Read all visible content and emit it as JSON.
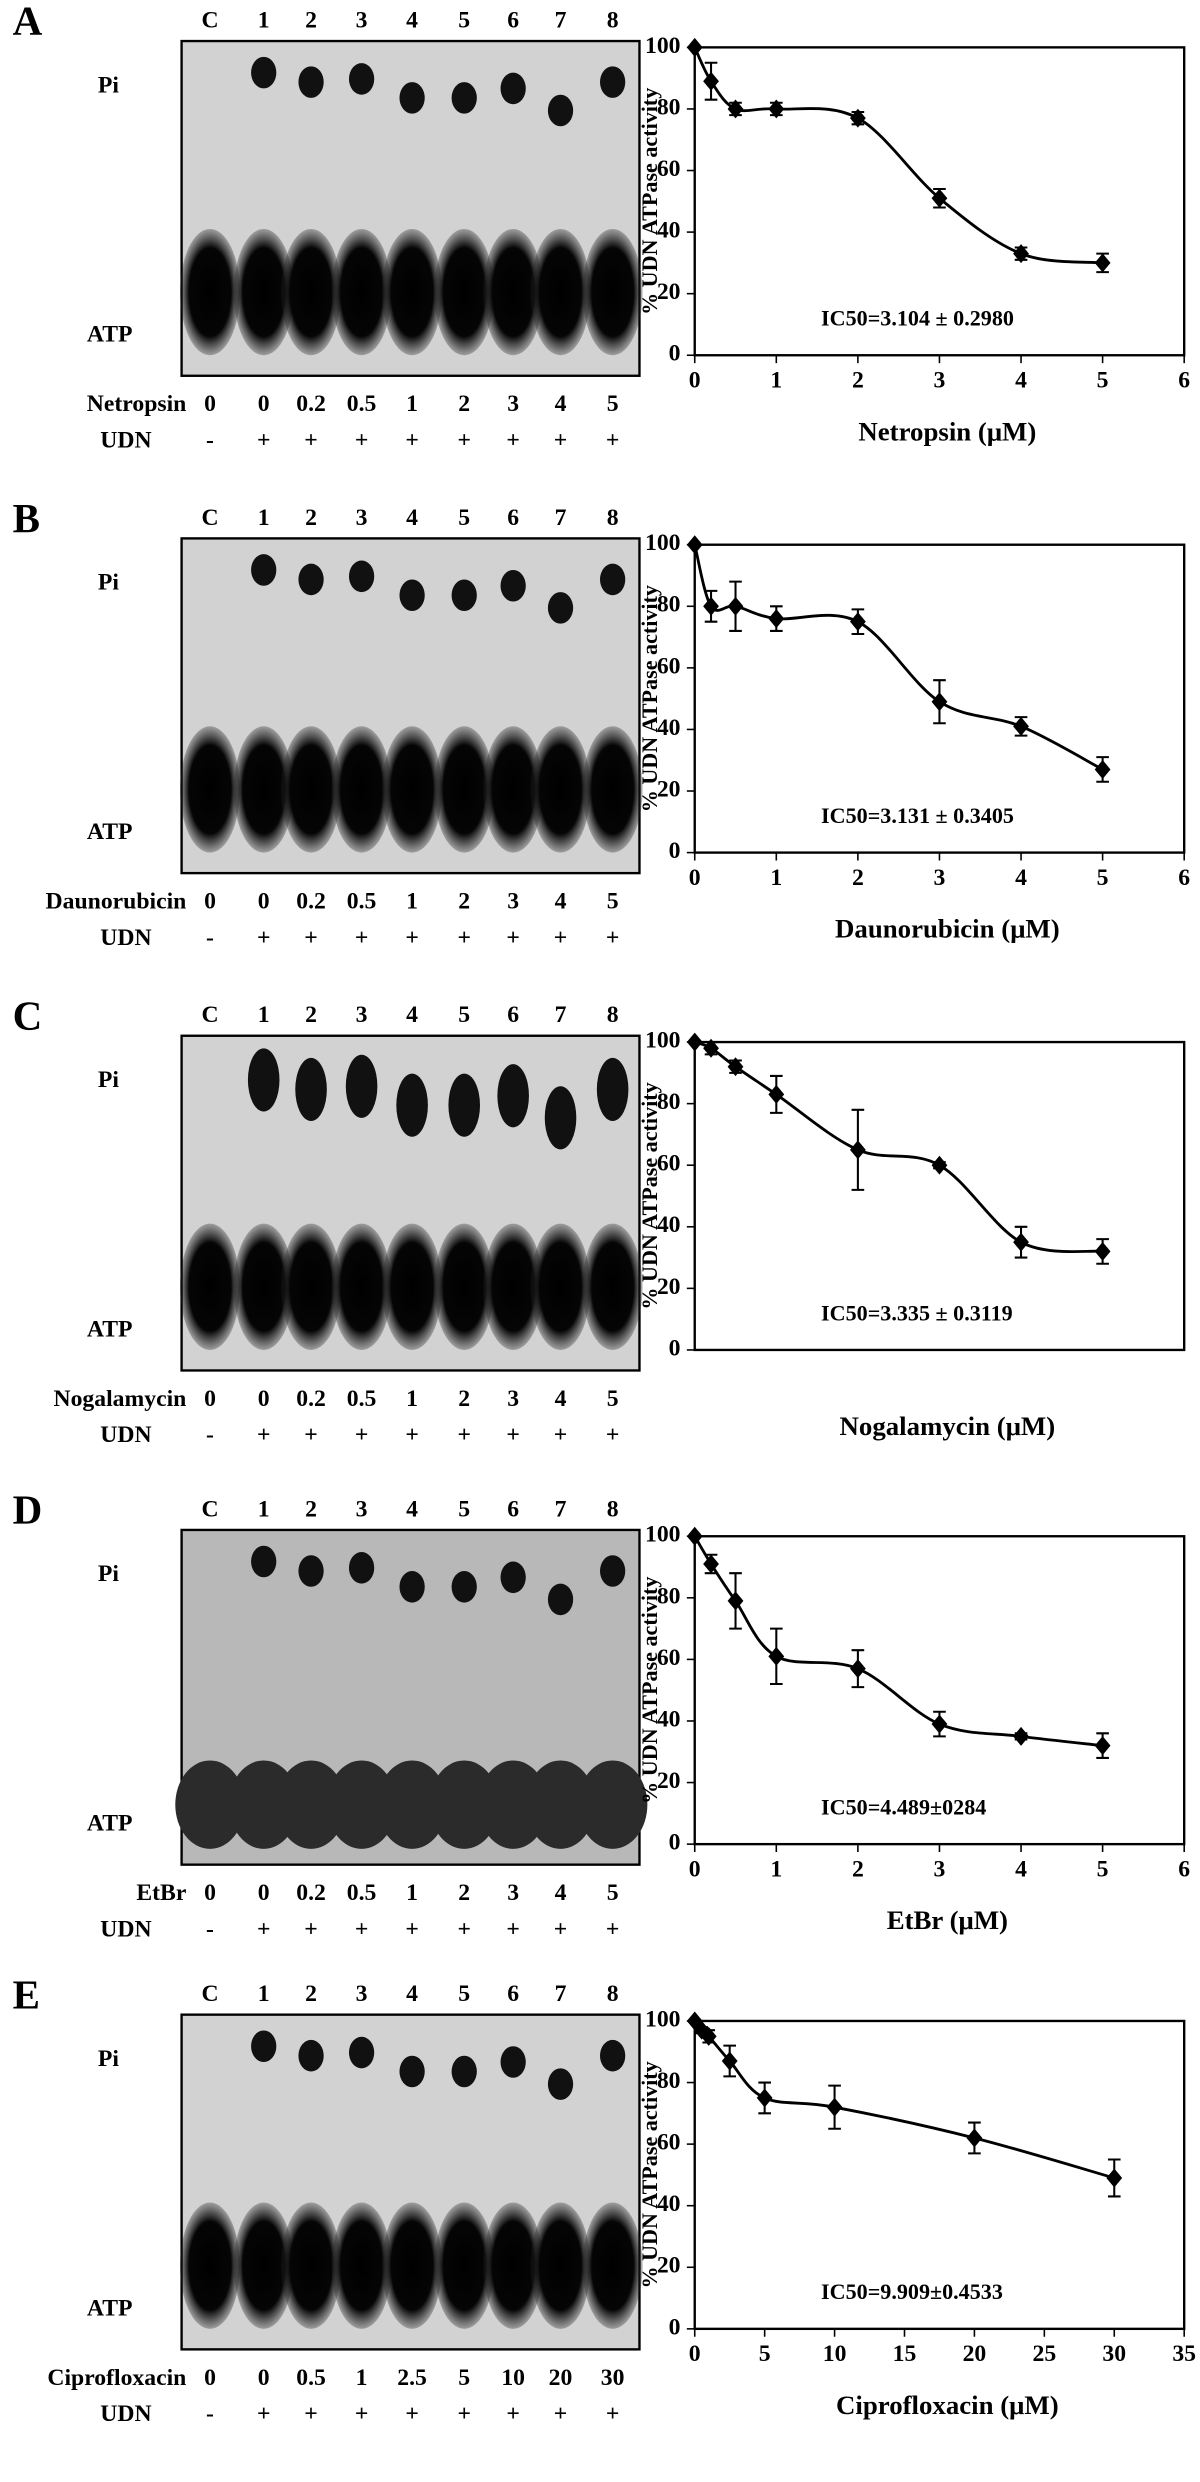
{
  "figure": [
    {
      "label": "A",
      "lanes": [
        "C",
        "1",
        "2",
        "3",
        "4",
        "5",
        "6",
        "7",
        "8"
      ],
      "pi_label": "Pi",
      "atp_label": "ATP",
      "drug": "Netropsin",
      "concentrations": [
        "0",
        "0",
        "0.2",
        "0.5",
        "1",
        "2",
        "3",
        "4",
        "5"
      ],
      "udn_label": "UDN",
      "udn": [
        "-",
        "+",
        "+",
        "+",
        "+",
        "+",
        "+",
        "+",
        "+"
      ]
    },
    {
      "label": "B",
      "lanes": [
        "C",
        "1",
        "2",
        "3",
        "4",
        "5",
        "6",
        "7",
        "8"
      ],
      "pi_label": "Pi",
      "atp_label": "ATP",
      "drug": "Daunorubicin",
      "concentrations": [
        "0",
        "0",
        "0.2",
        "0.5",
        "1",
        "2",
        "3",
        "4",
        "5"
      ],
      "udn_label": "UDN",
      "udn": [
        "-",
        "+",
        "+",
        "+",
        "+",
        "+",
        "+",
        "+",
        "+"
      ]
    },
    {
      "label": "C",
      "lanes": [
        "C",
        "1",
        "2",
        "3",
        "4",
        "5",
        "6",
        "7",
        "8"
      ],
      "pi_label": "Pi",
      "atp_label": "ATP",
      "drug": "Nogalamycin",
      "concentrations": [
        "0",
        "0",
        "0.2",
        "0.5",
        "1",
        "2",
        "3",
        "4",
        "5"
      ],
      "udn_label": "UDN",
      "udn": [
        "-",
        "+",
        "+",
        "+",
        "+",
        "+",
        "+",
        "+",
        "+"
      ]
    },
    {
      "label": "D",
      "lanes": [
        "C",
        "1",
        "2",
        "3",
        "4",
        "5",
        "6",
        "7",
        "8"
      ],
      "pi_label": "Pi",
      "atp_label": "ATP",
      "drug": "EtBr",
      "concentrations": [
        "0",
        "0",
        "0.2",
        "0.5",
        "1",
        "2",
        "3",
        "4",
        "5"
      ],
      "udn_label": "UDN",
      "udn": [
        "-",
        "+",
        "+",
        "+",
        "+",
        "+",
        "+",
        "+",
        "+"
      ]
    },
    {
      "label": "E",
      "lanes": [
        "C",
        "1",
        "2",
        "3",
        "4",
        "5",
        "6",
        "7",
        "8"
      ],
      "pi_label": "Pi",
      "atp_label": "ATP",
      "drug": "Ciprofloxacin",
      "concentrations": [
        "0",
        "0",
        "0.5",
        "1",
        "2.5",
        "5",
        "10",
        "20",
        "30"
      ],
      "udn_label": "UDN",
      "udn": [
        "-",
        "+",
        "+",
        "+",
        "+",
        "+",
        "+",
        "+",
        "+"
      ]
    }
  ],
  "chart_data": [
    {
      "type": "line",
      "ylabel": "% UDN ATPase activity",
      "xlabel": "Netropsin (μM)",
      "annotation": "IC50=3.104 ± 0.2980",
      "x": [
        0,
        0.2,
        0.5,
        1,
        2,
        3,
        4,
        5
      ],
      "series": [
        {
          "color": "#000000",
          "values": [
            100,
            89,
            80,
            80,
            77,
            51,
            33,
            30
          ],
          "errors": [
            0,
            6,
            2,
            2,
            2,
            3,
            2,
            3
          ]
        }
      ],
      "xlim": [
        0,
        6
      ],
      "xticks": [
        0,
        1,
        2,
        3,
        4,
        5,
        6
      ],
      "ylim": [
        0,
        100
      ],
      "yticks": [
        0,
        20,
        40,
        60,
        80,
        100
      ]
    },
    {
      "type": "line",
      "ylabel": "% UDN ATPase activity",
      "xlabel": "Daunorubicin (μM)",
      "annotation": "IC50=3.131 ± 0.3405",
      "x": [
        0,
        0.2,
        0.5,
        1,
        2,
        3,
        4,
        5
      ],
      "series": [
        {
          "color": "#000000",
          "values": [
            100,
            80,
            80,
            76,
            75,
            49,
            41,
            27
          ],
          "errors": [
            0,
            5,
            8,
            4,
            4,
            7,
            3,
            4
          ]
        }
      ],
      "xlim": [
        0,
        6
      ],
      "xticks": [
        0,
        1,
        2,
        3,
        4,
        5,
        6
      ],
      "ylim": [
        0,
        100
      ],
      "yticks": [
        0,
        20,
        40,
        60,
        80,
        100
      ]
    },
    {
      "type": "line",
      "ylabel": "% UDN ATPase activity",
      "xlabel": "Nogalamycin (μM)",
      "annotation": "IC50=3.335 ± 0.3119",
      "x": [
        0,
        0.2,
        0.5,
        1,
        2,
        3,
        4,
        5
      ],
      "series": [
        {
          "color": "#000000",
          "values": [
            100,
            98,
            92,
            83,
            65,
            60,
            35,
            32
          ],
          "errors": [
            0,
            2,
            2,
            6,
            13,
            1,
            5,
            4
          ]
        }
      ],
      "xlim": [
        0,
        6
      ],
      "ylim": [
        0,
        100
      ],
      "yticks": [
        0,
        20,
        40,
        60,
        80,
        100
      ]
    },
    {
      "type": "line",
      "ylabel": "% UDN ATPase activity",
      "xlabel": "EtBr (μM)",
      "annotation": "IC50=4.489±0284",
      "x": [
        0,
        0.2,
        0.5,
        1,
        2,
        3,
        4,
        5
      ],
      "series": [
        {
          "color": "#000000",
          "values": [
            100,
            91,
            79,
            61,
            57,
            39,
            35,
            32
          ],
          "errors": [
            0,
            3,
            9,
            9,
            6,
            4,
            1,
            4
          ]
        }
      ],
      "xlim": [
        0,
        6
      ],
      "xticks": [
        0,
        1,
        2,
        3,
        4,
        5,
        6
      ],
      "ylim": [
        0,
        100
      ],
      "yticks": [
        0,
        20,
        40,
        60,
        80,
        100
      ]
    },
    {
      "type": "line",
      "ylabel": "% UDN ATPase activity",
      "xlabel": "Ciprofloxacin (μM)",
      "annotation": "IC50=9.909±0.4533",
      "x": [
        0,
        0.5,
        1,
        2.5,
        5,
        10,
        20,
        30
      ],
      "series": [
        {
          "color": "#000000",
          "values": [
            100,
            97,
            95,
            87,
            75,
            72,
            62,
            49
          ],
          "errors": [
            0,
            1,
            2,
            5,
            5,
            7,
            5,
            6
          ]
        }
      ],
      "xlim": [
        0,
        35
      ],
      "xticks": [
        0,
        5,
        10,
        15,
        20,
        25,
        30,
        35
      ],
      "ylim": [
        0,
        100
      ],
      "yticks": [
        0,
        20,
        40,
        60,
        80,
        100
      ]
    }
  ]
}
